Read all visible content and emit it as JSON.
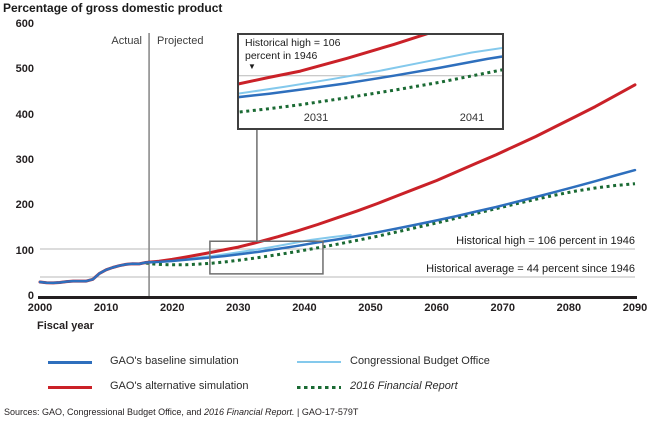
{
  "title": "Percentage of gross domestic product",
  "labels": {
    "actual": "Actual",
    "projected": "Projected",
    "fiscal_year": "Fiscal year"
  },
  "annotations": {
    "historical_high": "Historical high = 106 percent in 1946",
    "historical_average": "Historical average = 44 percent since 1946"
  },
  "inset_labels": {
    "note_line1": "Historical high = 106",
    "note_line2": "percent in 1946",
    "marker": "▼",
    "year_left": "2031",
    "year_right": "2041"
  },
  "legend": [
    {
      "label": "GAO's baseline simulation",
      "color": "#2e6fbd",
      "style": "solid",
      "italic": false
    },
    {
      "label": "GAO's alternative simulation",
      "color": "#ca2128",
      "style": "solid",
      "italic": false
    },
    {
      "label": "Congressional Budget Office",
      "color": "#84c9ec",
      "style": "solid-thin",
      "italic": false
    },
    {
      "label": "2016 Financial Report",
      "color": "#1a6a33",
      "style": "dotted",
      "italic": true
    }
  ],
  "source": {
    "prefix": "Sources: GAO, Congressional Budget Office, and ",
    "italic_part": "2016 Financial Report.",
    "suffix": "  |  GAO-17-579T"
  },
  "colors": {
    "baseline_blue": "#2e6fbd",
    "alternative_red": "#ca2128",
    "cbo_light_blue": "#84c9ec",
    "financial_green": "#1a6a33",
    "reference_gray": "#b9b9b9",
    "divider_gray": "#8c8c8c",
    "zoom_box_gray": "#6e6e6e",
    "inset_border": "#3f3f3f",
    "axis_black": "#231f20"
  },
  "chart_data": {
    "type": "line",
    "title": "Percentage of gross domestic product",
    "xlabel": "Fiscal year",
    "ylabel": "Percentage of gross domestic product",
    "xlim": [
      2000,
      2090
    ],
    "ylim": [
      0,
      600
    ],
    "x_ticks": [
      2000,
      2010,
      2020,
      2030,
      2040,
      2050,
      2060,
      2070,
      2080,
      2090
    ],
    "y_ticks": [
      0,
      100,
      200,
      300,
      400,
      500,
      600
    ],
    "grid": false,
    "legend_position": "bottom",
    "divider": {
      "x": 2016.5,
      "left_label": "Actual",
      "right_label": "Projected"
    },
    "reference_lines": [
      {
        "value": 106,
        "label": "Historical high = 106 percent in 1946"
      },
      {
        "value": 44,
        "label": "Historical average = 44 percent since 1946"
      }
    ],
    "series": [
      {
        "name": "GAO's baseline simulation",
        "color": "#2e6fbd",
        "dash": "solid",
        "width": 2.5,
        "points": [
          [
            2000,
            33
          ],
          [
            2001,
            31.5
          ],
          [
            2002,
            31
          ],
          [
            2003,
            32
          ],
          [
            2004,
            34
          ],
          [
            2005,
            35
          ],
          [
            2006,
            35
          ],
          [
            2007,
            35
          ],
          [
            2008,
            39
          ],
          [
            2009,
            52
          ],
          [
            2010,
            60
          ],
          [
            2011,
            65
          ],
          [
            2012,
            69
          ],
          [
            2013,
            72
          ],
          [
            2014,
            73.5
          ],
          [
            2015,
            73
          ],
          [
            2016,
            76
          ],
          [
            2018,
            77.5
          ],
          [
            2020,
            79.5
          ],
          [
            2022,
            82
          ],
          [
            2025,
            86
          ],
          [
            2028,
            90.5
          ],
          [
            2030,
            94
          ],
          [
            2033,
            99.5
          ],
          [
            2036,
            106
          ],
          [
            2039,
            113
          ],
          [
            2042,
            120.5
          ],
          [
            2045,
            127
          ],
          [
            2048,
            134.5
          ],
          [
            2051,
            142.5
          ],
          [
            2054,
            151
          ],
          [
            2057,
            160
          ],
          [
            2060,
            169
          ],
          [
            2063,
            178.5
          ],
          [
            2066,
            188.5
          ],
          [
            2069,
            198.5
          ],
          [
            2072,
            209.5
          ],
          [
            2075,
            220.5
          ],
          [
            2078,
            232
          ],
          [
            2081,
            243.5
          ],
          [
            2084,
            255.5
          ],
          [
            2087,
            268
          ],
          [
            2090,
            280
          ]
        ]
      },
      {
        "name": "GAO's alternative simulation",
        "color": "#ca2128",
        "dash": "solid",
        "width": 3,
        "points": [
          [
            2000,
            33
          ],
          [
            2001,
            31.5
          ],
          [
            2002,
            31
          ],
          [
            2003,
            32
          ],
          [
            2004,
            34
          ],
          [
            2005,
            35
          ],
          [
            2006,
            35
          ],
          [
            2007,
            35
          ],
          [
            2008,
            39
          ],
          [
            2009,
            52
          ],
          [
            2010,
            60
          ],
          [
            2011,
            65
          ],
          [
            2012,
            69
          ],
          [
            2013,
            72
          ],
          [
            2014,
            73.5
          ],
          [
            2015,
            73
          ],
          [
            2016,
            76
          ],
          [
            2018,
            79
          ],
          [
            2020,
            83
          ],
          [
            2022,
            88
          ],
          [
            2025,
            96
          ],
          [
            2028,
            104.5
          ],
          [
            2030,
            110
          ],
          [
            2033,
            121
          ],
          [
            2036,
            133
          ],
          [
            2039,
            146
          ],
          [
            2042,
            160
          ],
          [
            2045,
            175
          ],
          [
            2048,
            190
          ],
          [
            2051,
            206
          ],
          [
            2054,
            223
          ],
          [
            2057,
            240
          ],
          [
            2060,
            257
          ],
          [
            2063,
            276
          ],
          [
            2066,
            295
          ],
          [
            2069,
            314
          ],
          [
            2072,
            334
          ],
          [
            2075,
            354
          ],
          [
            2078,
            376
          ],
          [
            2081,
            398
          ],
          [
            2084,
            420
          ],
          [
            2087,
            444
          ],
          [
            2090,
            468
          ]
        ]
      },
      {
        "name": "Congressional Budget Office",
        "color": "#84c9ec",
        "dash": "solid",
        "width": 2,
        "points": [
          [
            2016,
            76.5
          ],
          [
            2018,
            78.5
          ],
          [
            2020,
            81
          ],
          [
            2023,
            85.5
          ],
          [
            2026,
            90.5
          ],
          [
            2029,
            96.5
          ],
          [
            2032,
            103
          ],
          [
            2035,
            110
          ],
          [
            2038,
            118
          ],
          [
            2041,
            126
          ],
          [
            2044,
            132
          ],
          [
            2047,
            137
          ]
        ]
      },
      {
        "name": "2016 Financial Report",
        "color": "#1a6a33",
        "dash": "dotted",
        "width": 3,
        "points": [
          [
            2016,
            75
          ],
          [
            2017,
            73
          ],
          [
            2018,
            72
          ],
          [
            2020,
            71
          ],
          [
            2022,
            71
          ],
          [
            2024,
            72.5
          ],
          [
            2026,
            74.5
          ],
          [
            2028,
            77.5
          ],
          [
            2030,
            81
          ],
          [
            2033,
            87
          ],
          [
            2036,
            93.5
          ],
          [
            2039,
            100.5
          ],
          [
            2042,
            108.5
          ],
          [
            2045,
            116.5
          ],
          [
            2048,
            125
          ],
          [
            2051,
            134
          ],
          [
            2054,
            143.5
          ],
          [
            2057,
            153.5
          ],
          [
            2060,
            163.5
          ],
          [
            2063,
            174
          ],
          [
            2066,
            184.5
          ],
          [
            2069,
            195
          ],
          [
            2072,
            205.5
          ],
          [
            2075,
            215.5
          ],
          [
            2078,
            225
          ],
          [
            2081,
            233.5
          ],
          [
            2084,
            240.5
          ],
          [
            2087,
            246
          ],
          [
            2090,
            250
          ]
        ]
      }
    ],
    "inset": {
      "note": "Historical high = 106 percent in 1946",
      "years_labeled": [
        2031,
        2041
      ],
      "detail_range": {
        "years": [
          2026,
          2043
        ],
        "values": [
          60,
          142
        ]
      },
      "source_rect": {
        "years": [
          2025.7,
          2042.8
        ],
        "values": [
          51,
          123
        ]
      },
      "reference_value": 106
    }
  }
}
